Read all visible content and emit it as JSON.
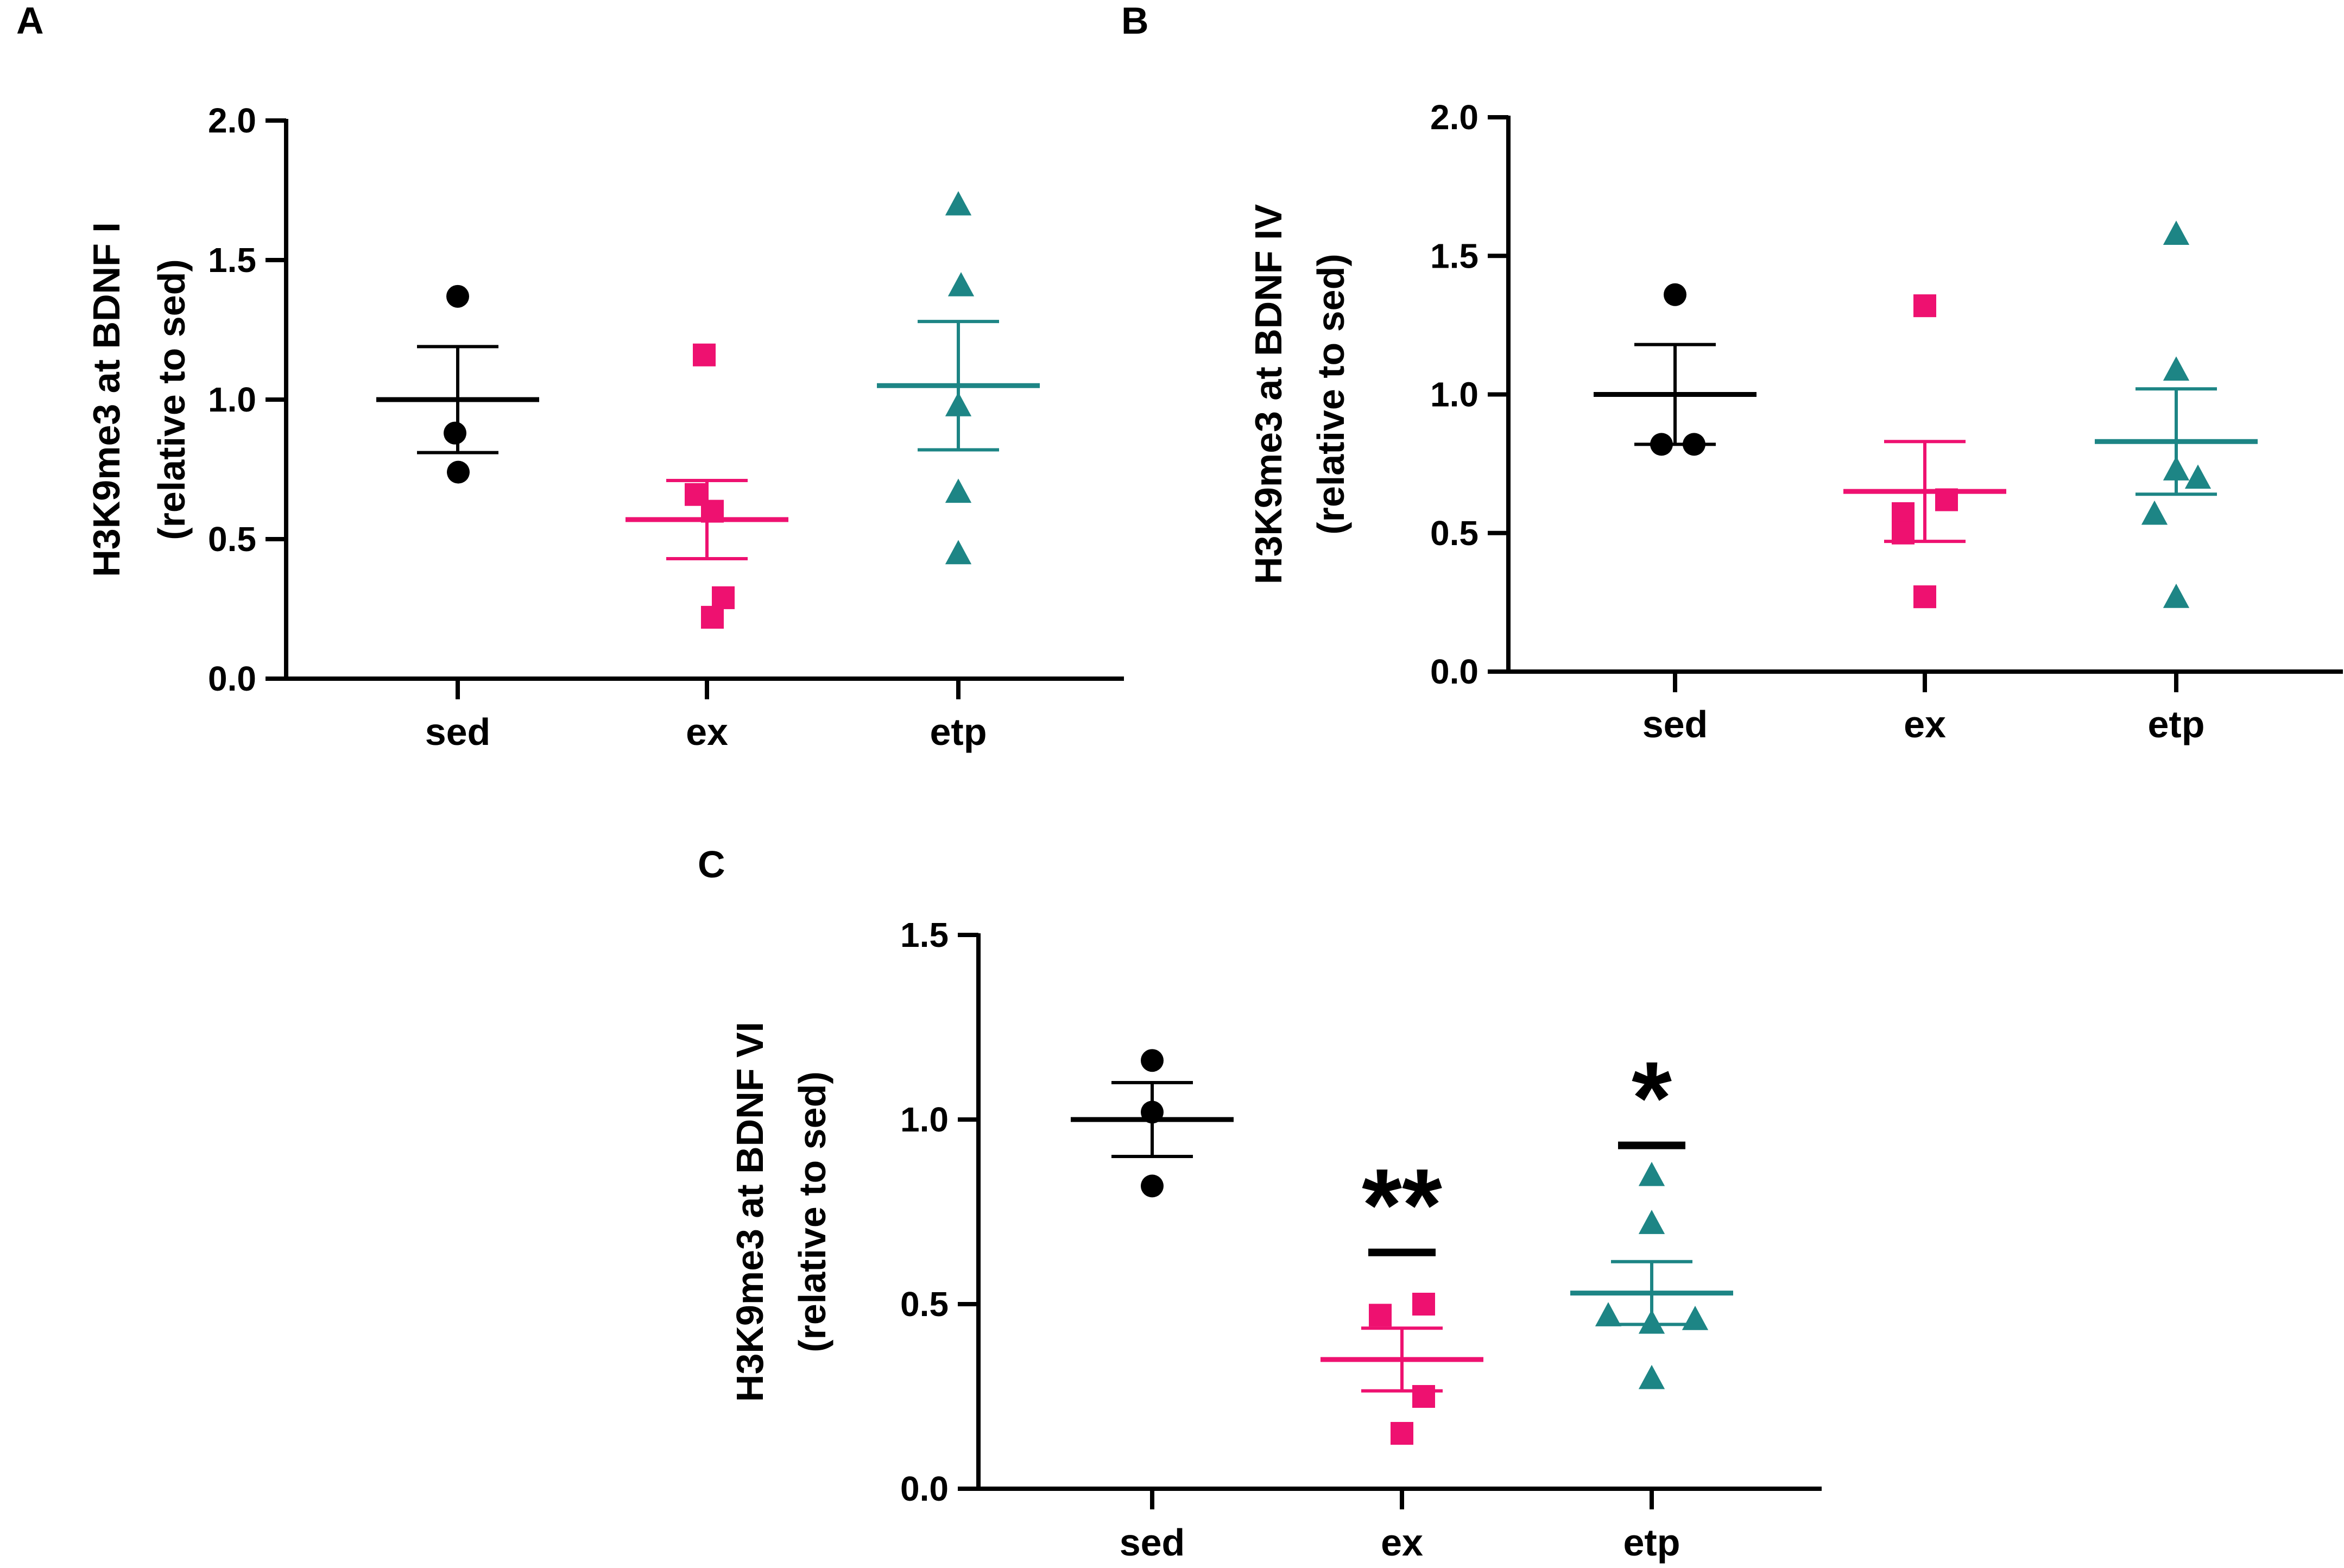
{
  "colors": {
    "sed": "#000000",
    "ex": "#ee1170",
    "etp": "#1d8585",
    "axis": "#000000"
  },
  "chart_data": [
    {
      "panel": "A",
      "type": "scatter",
      "ylabel_lines": [
        "H3K9me3 at BDNF I",
        "(relative to sed)"
      ],
      "ylim": [
        0,
        2.0
      ],
      "yticks": [
        0.0,
        0.5,
        1.0,
        1.5,
        2.0
      ],
      "ytick_labels": [
        "0.0",
        "0.5",
        "1.0",
        "1.5",
        "2.0"
      ],
      "categories": [
        "sed",
        "ex",
        "etp"
      ],
      "series": [
        {
          "name": "sed",
          "marker": "circle",
          "color": "#000000",
          "points": [
            1.37,
            0.88,
            0.74
          ],
          "mean": 1.0,
          "sem": 0.19
        },
        {
          "name": "ex",
          "marker": "square",
          "color": "#ee1170",
          "points": [
            1.16,
            0.66,
            0.6,
            0.29,
            0.22
          ],
          "mean": 0.57,
          "sem": 0.14
        },
        {
          "name": "etp",
          "marker": "triangle",
          "color": "#1d8585",
          "points": [
            1.7,
            1.41,
            0.98,
            0.67,
            0.45
          ],
          "mean": 1.05,
          "sem": 0.23
        }
      ],
      "significance": []
    },
    {
      "panel": "B",
      "type": "scatter",
      "ylabel_lines": [
        "H3K9me3 at BDNF IV",
        "(relative to sed)"
      ],
      "ylim": [
        0,
        2.0
      ],
      "yticks": [
        0.0,
        0.5,
        1.0,
        1.5,
        2.0
      ],
      "ytick_labels": [
        "0.0",
        "0.5",
        "1.0",
        "1.5",
        "2.0"
      ],
      "categories": [
        "sed",
        "ex",
        "etp"
      ],
      "series": [
        {
          "name": "sed",
          "marker": "circle",
          "color": "#000000",
          "points": [
            1.36,
            0.82,
            0.82
          ],
          "mean": 1.0,
          "sem": 0.18
        },
        {
          "name": "ex",
          "marker": "square",
          "color": "#ee1170",
          "points": [
            1.32,
            0.62,
            0.57,
            0.5,
            0.27
          ],
          "mean": 0.65,
          "sem": 0.18
        },
        {
          "name": "etp",
          "marker": "triangle",
          "color": "#1d8585",
          "points": [
            1.58,
            1.09,
            0.73,
            0.7,
            0.57,
            0.27
          ],
          "mean": 0.83,
          "sem": 0.19
        }
      ],
      "significance": []
    },
    {
      "panel": "C",
      "type": "scatter",
      "ylabel_lines": [
        "H3K9me3 at BDNF VI",
        "(relative to sed)"
      ],
      "ylim": [
        0,
        1.5
      ],
      "yticks": [
        0.0,
        0.5,
        1.0,
        1.5
      ],
      "ytick_labels": [
        "0.0",
        "0.5",
        "1.0",
        "1.5"
      ],
      "categories": [
        "sed",
        "ex",
        "etp"
      ],
      "series": [
        {
          "name": "sed",
          "marker": "circle",
          "color": "#000000",
          "points": [
            1.16,
            1.02,
            0.82
          ],
          "mean": 1.0,
          "sem": 0.1
        },
        {
          "name": "ex",
          "marker": "square",
          "color": "#ee1170",
          "points": [
            0.5,
            0.47,
            0.25,
            0.15
          ],
          "mean": 0.35,
          "sem": 0.085
        },
        {
          "name": "etp",
          "marker": "triangle",
          "color": "#1d8585",
          "points": [
            0.85,
            0.72,
            0.47,
            0.46,
            0.45,
            0.3
          ],
          "mean": 0.53,
          "sem": 0.085
        }
      ],
      "significance": [
        {
          "category": "ex",
          "label": "**",
          "at": 0.64
        },
        {
          "category": "etp",
          "label": "*",
          "at": 0.93
        }
      ]
    }
  ]
}
